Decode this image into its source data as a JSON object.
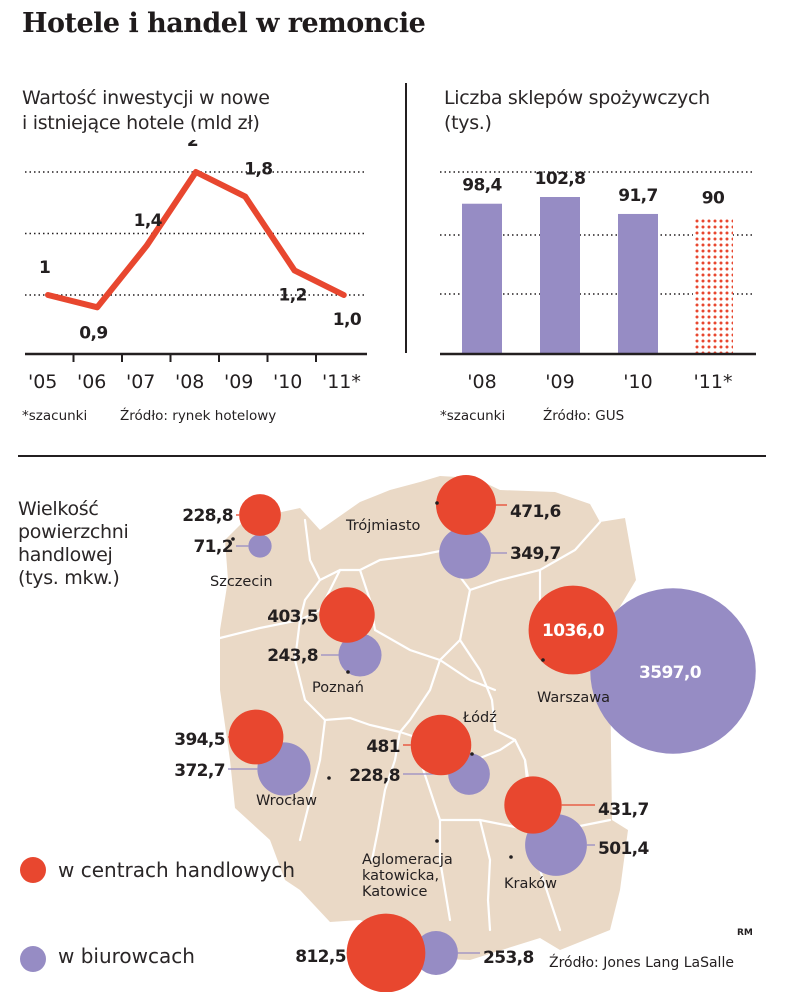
{
  "title": "Hotele i handel w remoncie",
  "colors": {
    "red": "#e8472f",
    "purple": "#968cc4",
    "map": "#ead9c6",
    "border": "#ffffff",
    "text": "#231f20"
  },
  "chart_data": [
    {
      "type": "line",
      "title": "Wartość inwestycji w nowe i istniejące hotele (mld zł)",
      "title_lines": [
        "Wartość inwestycji w nowe",
        "i istniejące hotele (mld zł)"
      ],
      "categories": [
        "'05",
        "'06",
        "'07",
        "'08",
        "'09",
        "'10",
        "'11*"
      ],
      "values": [
        1.0,
        0.9,
        1.4,
        2.0,
        1.8,
        1.2,
        1.0
      ],
      "value_labels": [
        "1",
        "0,9",
        "1,4",
        "2",
        "1,8",
        "1,2",
        "1,0"
      ],
      "ylim": [
        0.0,
        2.0
      ],
      "gridlines": [
        1.0,
        1.5,
        2.0
      ],
      "grid": "dotted",
      "color": "#e8472f",
      "footnote": "*szacunki",
      "source": "Źródło: rynek hotelowy"
    },
    {
      "type": "bar",
      "title": "Liczba sklepów spożywczych (tys.)",
      "title_lines": [
        "Liczba sklepów spożywczych",
        "(tys.)"
      ],
      "categories": [
        "'08",
        "'09",
        "'10",
        "'11*"
      ],
      "values": [
        98.4,
        102.8,
        91.7,
        90
      ],
      "value_labels": [
        "98,4",
        "102,8",
        "91,7",
        "90"
      ],
      "estimated": [
        false,
        false,
        false,
        true
      ],
      "ylim": [
        0,
        120
      ],
      "gridlines": [
        40,
        80,
        120
      ],
      "grid": "dotted",
      "color": "#968cc4",
      "estimate_color": "#e8472f",
      "footnote": "*szacunki",
      "source": "Źródło: GUS"
    },
    {
      "type": "scatter",
      "subtype": "bubble-map",
      "title": "Wielkość powierzchni handlowej (tys. mkw.)",
      "title_lines": [
        "Wielkość",
        "powierzchni",
        "handlowej",
        "(tys. mkw.)"
      ],
      "series": [
        {
          "name": "w centrach handlowych",
          "color": "#e8472f"
        },
        {
          "name": "w biurowcach",
          "color": "#968cc4"
        }
      ],
      "cities": [
        {
          "name": "Szczecin",
          "name_lines": [
            "Szczecin"
          ],
          "retail": 228.8,
          "retail_label": "228,8",
          "office": 71.2,
          "office_label": "71,2"
        },
        {
          "name": "Trójmiasto",
          "name_lines": [
            "Trójmiasto"
          ],
          "retail": 471.6,
          "retail_label": "471,6",
          "office": 349.7,
          "office_label": "349,7"
        },
        {
          "name": "Poznań",
          "name_lines": [
            "Poznań"
          ],
          "retail": 403.5,
          "retail_label": "403,5",
          "office": 243.8,
          "office_label": "243,8"
        },
        {
          "name": "Warszawa",
          "name_lines": [
            "Warszawa"
          ],
          "retail": 1036.0,
          "retail_label": "1036,0",
          "office": 3597.0,
          "office_label": "3597,0"
        },
        {
          "name": "Wrocław",
          "name_lines": [
            "Wrocław"
          ],
          "retail": 394.5,
          "retail_label": "394,5",
          "office": 372.7,
          "office_label": "372,7"
        },
        {
          "name": "Łódź",
          "name_lines": [
            "Łódź"
          ],
          "retail": 481,
          "retail_label": "481",
          "office": 228.8,
          "office_label": "228,8"
        },
        {
          "name": "Kraków",
          "name_lines": [
            "Kraków"
          ],
          "retail": 431.7,
          "retail_label": "431,7",
          "office": 501.4,
          "office_label": "501,4"
        },
        {
          "name": "Aglomeracja katowicka, Katowice",
          "name_lines": [
            "Aglomeracja",
            "katowicka,",
            "Katowice"
          ],
          "retail": 812.5,
          "retail_label": "812,5",
          "office": 253.8,
          "office_label": "253,8"
        }
      ],
      "source": "Źródło: Jones Lang LaSalle"
    }
  ],
  "credit": "RM"
}
